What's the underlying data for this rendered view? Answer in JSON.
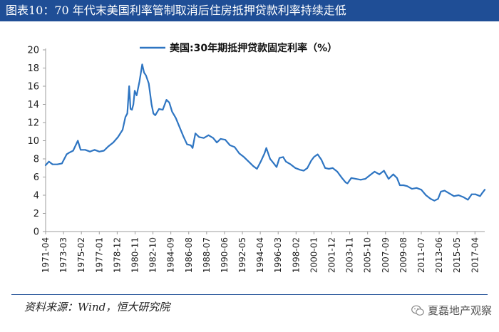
{
  "header": {
    "title": "图表10：70 年代末美国利率管制取消后住房抵押贷款利率持续走低"
  },
  "footer": {
    "source": "资料来源：Wind，恒大研究院",
    "watermark": "夏磊地产观察",
    "watermark_icon": "wechat-icon"
  },
  "colors": {
    "title_bg": "#1f4e96",
    "series": "#2e75c2",
    "axis": "#9c9c9c"
  },
  "chart_data": {
    "type": "line",
    "title": "",
    "xlabel": "",
    "ylabel": "",
    "ylim": [
      0,
      20
    ],
    "yticks": [
      "0",
      "2",
      "4",
      "6",
      "8",
      "10",
      "12",
      "14",
      "16",
      "18",
      "20"
    ],
    "xlim": [
      1971.25,
      2018.3
    ],
    "xticks": [
      "1971-04",
      "1973-03",
      "1975-02",
      "1977-01",
      "1978-12",
      "1980-11",
      "1982-10",
      "1984-09",
      "1986-08",
      "1988-07",
      "1990-06",
      "1992-05",
      "1994-04",
      "1996-03",
      "1998-02",
      "2000-01",
      "2001-12",
      "2003-11",
      "2005-10",
      "2007-09",
      "2009-08",
      "2011-07",
      "2013-06",
      "2015-05",
      "2017-04"
    ],
    "legend": {
      "position": "top-center"
    },
    "series": [
      {
        "name": "美国:30年期抵押贷款固定利率（%）",
        "x": [
          1971.25,
          1971.6,
          1972.0,
          1972.5,
          1973.0,
          1973.5,
          1973.8,
          1974.2,
          1974.7,
          1975.0,
          1975.5,
          1976.0,
          1976.5,
          1977.0,
          1977.5,
          1978.0,
          1978.5,
          1979.0,
          1979.5,
          1979.8,
          1980.0,
          1980.2,
          1980.35,
          1980.5,
          1980.65,
          1980.8,
          1981.0,
          1981.3,
          1981.6,
          1981.8,
          1982.0,
          1982.3,
          1982.6,
          1982.8,
          1983.0,
          1983.4,
          1983.8,
          1984.2,
          1984.5,
          1984.8,
          1985.2,
          1985.6,
          1986.0,
          1986.4,
          1986.8,
          1987.0,
          1987.3,
          1987.7,
          1988.2,
          1988.7,
          1989.2,
          1989.6,
          1990.0,
          1990.5,
          1991.0,
          1991.5,
          1992.0,
          1992.5,
          1993.0,
          1993.5,
          1993.9,
          1994.3,
          1994.7,
          1994.9,
          1995.3,
          1995.7,
          1996.0,
          1996.3,
          1996.7,
          1997.0,
          1997.5,
          1998.0,
          1998.5,
          1998.9,
          1999.3,
          1999.7,
          2000.0,
          2000.4,
          2000.8,
          2001.2,
          2001.6,
          2002.0,
          2002.5,
          2003.0,
          2003.4,
          2003.6,
          2004.0,
          2004.5,
          2005.0,
          2005.5,
          2006.0,
          2006.5,
          2007.0,
          2007.5,
          2008.0,
          2008.5,
          2008.9,
          2009.2,
          2009.6,
          2010.0,
          2010.5,
          2011.0,
          2011.5,
          2012.0,
          2012.5,
          2012.9,
          2013.3,
          2013.6,
          2014.0,
          2014.5,
          2015.0,
          2015.5,
          2016.0,
          2016.5,
          2016.9,
          2017.3,
          2017.8,
          2018.0,
          2018.3
        ],
        "values": [
          7.3,
          7.7,
          7.4,
          7.4,
          7.5,
          8.5,
          8.7,
          8.9,
          10.0,
          9.0,
          9.0,
          8.8,
          9.0,
          8.8,
          8.9,
          9.4,
          9.8,
          10.4,
          11.2,
          12.6,
          13.0,
          16.0,
          13.5,
          13.4,
          14.0,
          15.5,
          15.0,
          16.5,
          18.4,
          17.5,
          17.2,
          16.3,
          14.0,
          13.0,
          12.8,
          13.5,
          13.4,
          14.5,
          14.2,
          13.2,
          12.5,
          11.5,
          10.5,
          9.6,
          9.5,
          9.2,
          10.8,
          10.4,
          10.3,
          10.6,
          10.3,
          9.8,
          10.2,
          10.1,
          9.5,
          9.3,
          8.6,
          8.2,
          7.7,
          7.2,
          6.9,
          7.7,
          8.6,
          9.2,
          8.0,
          7.5,
          7.1,
          8.1,
          8.2,
          7.7,
          7.4,
          7.0,
          6.8,
          6.7,
          7.0,
          7.8,
          8.2,
          8.5,
          7.9,
          7.0,
          6.9,
          7.0,
          6.6,
          5.9,
          5.4,
          5.3,
          5.9,
          5.8,
          5.7,
          5.8,
          6.2,
          6.6,
          6.3,
          6.7,
          5.8,
          6.3,
          5.9,
          5.1,
          5.1,
          5.0,
          4.7,
          4.8,
          4.6,
          4.0,
          3.6,
          3.4,
          3.6,
          4.4,
          4.5,
          4.2,
          3.9,
          4.0,
          3.8,
          3.5,
          4.1,
          4.1,
          3.9,
          4.2,
          4.6
        ]
      }
    ]
  }
}
